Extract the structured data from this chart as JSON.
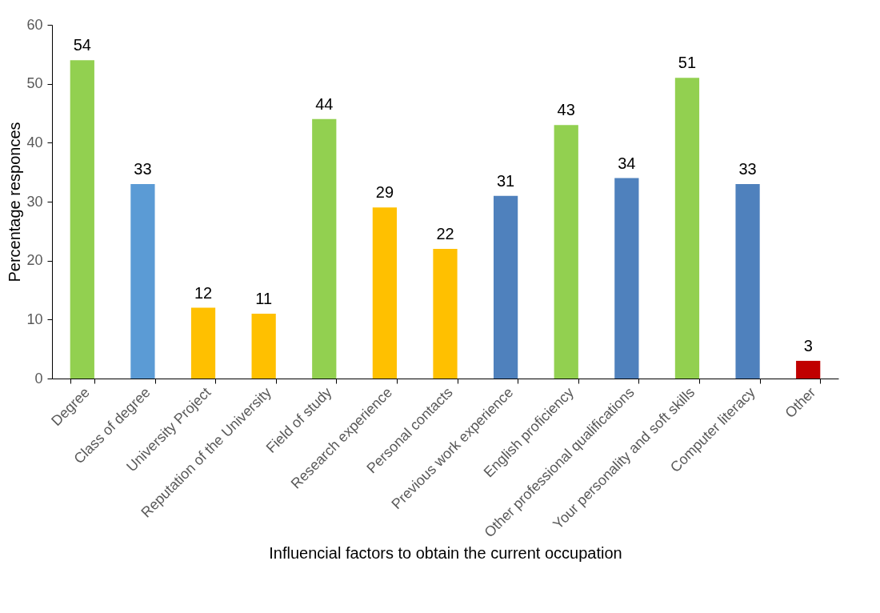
{
  "chart_data": {
    "type": "bar",
    "xlabel": "Influencial factors to obtain the current occupation",
    "ylabel": "Percentage responces",
    "categories": [
      "Degree",
      "Class of degree",
      "University Project",
      "Reputation of the University",
      "Field of study",
      "Research experience",
      "Personal contacts",
      "Previous work experience",
      "English proficiency",
      "Other professional qualifications",
      "Your personality and soft skills",
      "Computer literacy",
      "Other"
    ],
    "values": [
      54,
      33,
      12,
      11,
      44,
      29,
      22,
      31,
      43,
      34,
      51,
      33,
      3
    ],
    "colors": [
      "#92d050",
      "#5b9bd5",
      "#ffc000",
      "#ffc000",
      "#92d050",
      "#ffc000",
      "#ffc000",
      "#4f81bd",
      "#92d050",
      "#4f81bd",
      "#92d050",
      "#4f81bd",
      "#c00000"
    ],
    "data_labels": true,
    "ylim": [
      0,
      60
    ],
    "yticks": [
      0,
      10,
      20,
      30,
      40,
      50,
      60
    ],
    "grid": false
  }
}
